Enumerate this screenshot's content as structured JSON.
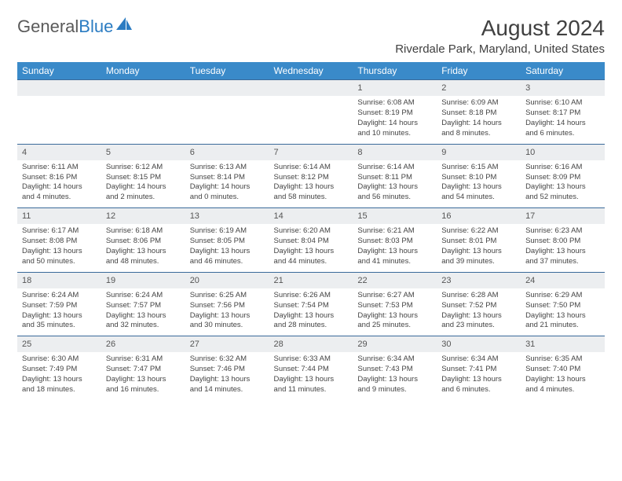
{
  "brand": {
    "part1": "General",
    "part2": "Blue"
  },
  "title": "August 2024",
  "location": "Riverdale Park, Maryland, United States",
  "colors": {
    "header_bg": "#3a8ac9",
    "header_text": "#ffffff",
    "daynum_bg": "#eceef0",
    "row_border": "#3a6a9a",
    "brand_gray": "#5a5a5a",
    "brand_blue": "#2b7cc2"
  },
  "day_headers": [
    "Sunday",
    "Monday",
    "Tuesday",
    "Wednesday",
    "Thursday",
    "Friday",
    "Saturday"
  ],
  "weeks": [
    {
      "nums": [
        "",
        "",
        "",
        "",
        "1",
        "2",
        "3"
      ],
      "cells": [
        null,
        null,
        null,
        null,
        {
          "sunrise": "6:08 AM",
          "sunset": "8:19 PM",
          "daylight": "14 hours and 10 minutes."
        },
        {
          "sunrise": "6:09 AM",
          "sunset": "8:18 PM",
          "daylight": "14 hours and 8 minutes."
        },
        {
          "sunrise": "6:10 AM",
          "sunset": "8:17 PM",
          "daylight": "14 hours and 6 minutes."
        }
      ]
    },
    {
      "nums": [
        "4",
        "5",
        "6",
        "7",
        "8",
        "9",
        "10"
      ],
      "cells": [
        {
          "sunrise": "6:11 AM",
          "sunset": "8:16 PM",
          "daylight": "14 hours and 4 minutes."
        },
        {
          "sunrise": "6:12 AM",
          "sunset": "8:15 PM",
          "daylight": "14 hours and 2 minutes."
        },
        {
          "sunrise": "6:13 AM",
          "sunset": "8:14 PM",
          "daylight": "14 hours and 0 minutes."
        },
        {
          "sunrise": "6:14 AM",
          "sunset": "8:12 PM",
          "daylight": "13 hours and 58 minutes."
        },
        {
          "sunrise": "6:14 AM",
          "sunset": "8:11 PM",
          "daylight": "13 hours and 56 minutes."
        },
        {
          "sunrise": "6:15 AM",
          "sunset": "8:10 PM",
          "daylight": "13 hours and 54 minutes."
        },
        {
          "sunrise": "6:16 AM",
          "sunset": "8:09 PM",
          "daylight": "13 hours and 52 minutes."
        }
      ]
    },
    {
      "nums": [
        "11",
        "12",
        "13",
        "14",
        "15",
        "16",
        "17"
      ],
      "cells": [
        {
          "sunrise": "6:17 AM",
          "sunset": "8:08 PM",
          "daylight": "13 hours and 50 minutes."
        },
        {
          "sunrise": "6:18 AM",
          "sunset": "8:06 PM",
          "daylight": "13 hours and 48 minutes."
        },
        {
          "sunrise": "6:19 AM",
          "sunset": "8:05 PM",
          "daylight": "13 hours and 46 minutes."
        },
        {
          "sunrise": "6:20 AM",
          "sunset": "8:04 PM",
          "daylight": "13 hours and 44 minutes."
        },
        {
          "sunrise": "6:21 AM",
          "sunset": "8:03 PM",
          "daylight": "13 hours and 41 minutes."
        },
        {
          "sunrise": "6:22 AM",
          "sunset": "8:01 PM",
          "daylight": "13 hours and 39 minutes."
        },
        {
          "sunrise": "6:23 AM",
          "sunset": "8:00 PM",
          "daylight": "13 hours and 37 minutes."
        }
      ]
    },
    {
      "nums": [
        "18",
        "19",
        "20",
        "21",
        "22",
        "23",
        "24"
      ],
      "cells": [
        {
          "sunrise": "6:24 AM",
          "sunset": "7:59 PM",
          "daylight": "13 hours and 35 minutes."
        },
        {
          "sunrise": "6:24 AM",
          "sunset": "7:57 PM",
          "daylight": "13 hours and 32 minutes."
        },
        {
          "sunrise": "6:25 AM",
          "sunset": "7:56 PM",
          "daylight": "13 hours and 30 minutes."
        },
        {
          "sunrise": "6:26 AM",
          "sunset": "7:54 PM",
          "daylight": "13 hours and 28 minutes."
        },
        {
          "sunrise": "6:27 AM",
          "sunset": "7:53 PM",
          "daylight": "13 hours and 25 minutes."
        },
        {
          "sunrise": "6:28 AM",
          "sunset": "7:52 PM",
          "daylight": "13 hours and 23 minutes."
        },
        {
          "sunrise": "6:29 AM",
          "sunset": "7:50 PM",
          "daylight": "13 hours and 21 minutes."
        }
      ]
    },
    {
      "nums": [
        "25",
        "26",
        "27",
        "28",
        "29",
        "30",
        "31"
      ],
      "cells": [
        {
          "sunrise": "6:30 AM",
          "sunset": "7:49 PM",
          "daylight": "13 hours and 18 minutes."
        },
        {
          "sunrise": "6:31 AM",
          "sunset": "7:47 PM",
          "daylight": "13 hours and 16 minutes."
        },
        {
          "sunrise": "6:32 AM",
          "sunset": "7:46 PM",
          "daylight": "13 hours and 14 minutes."
        },
        {
          "sunrise": "6:33 AM",
          "sunset": "7:44 PM",
          "daylight": "13 hours and 11 minutes."
        },
        {
          "sunrise": "6:34 AM",
          "sunset": "7:43 PM",
          "daylight": "13 hours and 9 minutes."
        },
        {
          "sunrise": "6:34 AM",
          "sunset": "7:41 PM",
          "daylight": "13 hours and 6 minutes."
        },
        {
          "sunrise": "6:35 AM",
          "sunset": "7:40 PM",
          "daylight": "13 hours and 4 minutes."
        }
      ]
    }
  ],
  "labels": {
    "sunrise": "Sunrise: ",
    "sunset": "Sunset: ",
    "daylight": "Daylight: "
  }
}
